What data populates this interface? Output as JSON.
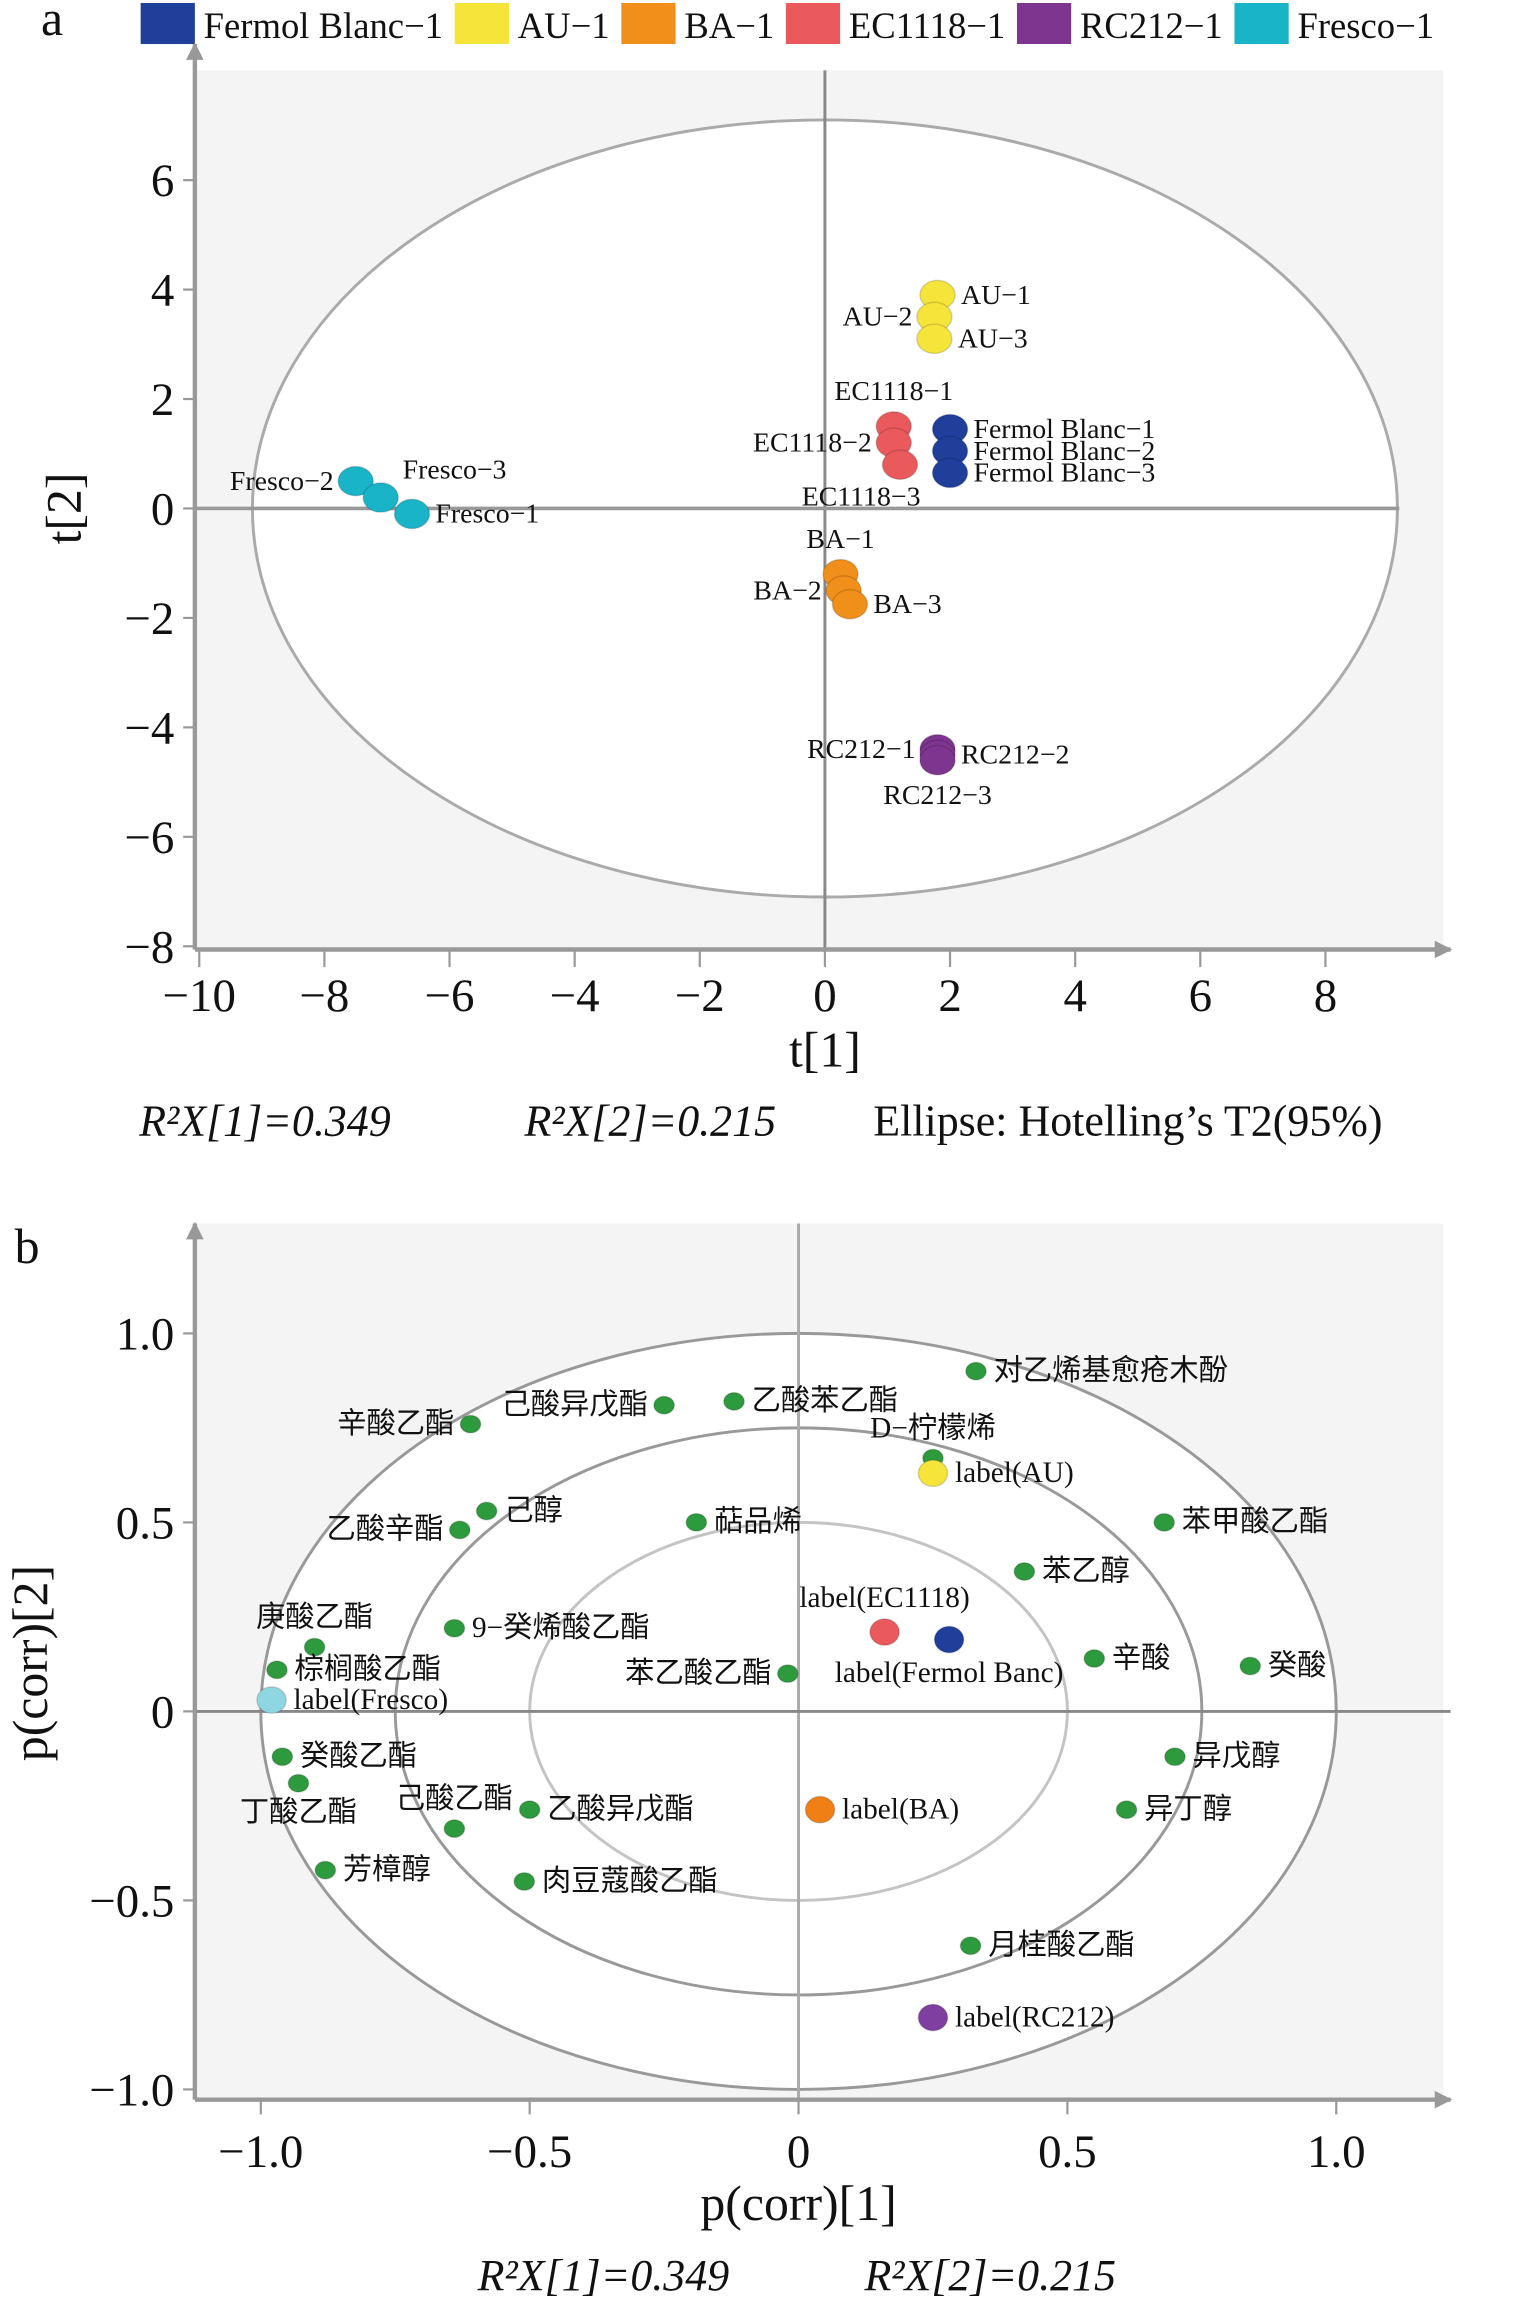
{
  "chart_data": [
    {
      "type": "scatter",
      "panel_label": "a",
      "title": "",
      "xlabel": "t[1]",
      "ylabel": "t[2]",
      "xlim": [
        -10,
        9.5
      ],
      "ylim": [
        -8,
        7.5
      ],
      "xticks": [
        -10,
        -8,
        -6,
        -4,
        -2,
        0,
        2,
        4,
        6,
        8
      ],
      "yticks": [
        6,
        4,
        2,
        0,
        -2,
        -4,
        -6,
        -8
      ],
      "xtick_labels": [
        "−10",
        "−8",
        "−6",
        "−4",
        "−2",
        "0",
        "2",
        "4",
        "6",
        "8"
      ],
      "ytick_labels": [
        "6",
        "4",
        "2",
        "0",
        "−2",
        "−4",
        "−6",
        "−8"
      ],
      "grid": false,
      "legend_placement": "top",
      "legend": [
        {
          "label": "Fermol Blanc−1",
          "color": "#1f3f9a"
        },
        {
          "label": "AU−1",
          "color": "#f5e43a"
        },
        {
          "label": "BA−1",
          "color": "#f0901a"
        },
        {
          "label": "EC1118−1",
          "color": "#ea5a5c"
        },
        {
          "label": "RC212−1",
          "color": "#7e3590"
        },
        {
          "label": "Fresco−1",
          "color": "#1ab4c9"
        }
      ],
      "ellipse": {
        "center": [
          0,
          0
        ],
        "semi_axes": [
          9.15,
          7.1
        ],
        "label": "Ellipse: Hotelling’s T2(95%)"
      },
      "footer": [
        "R²X[1]=0.349",
        "R²X[2]=0.215",
        "Ellipse: Hotelling’s T2(95%)"
      ],
      "points": [
        {
          "label": "Fresco−2",
          "x": -7.5,
          "y": 0.5,
          "group": 5,
          "label_pos": "left"
        },
        {
          "label": "Fresco−3",
          "x": -7.1,
          "y": 0.2,
          "group": 5,
          "label_pos": "above-right"
        },
        {
          "label": "Fresco−1",
          "x": -6.6,
          "y": -0.1,
          "group": 5,
          "label_pos": "right"
        },
        {
          "label": "AU−1",
          "x": 1.8,
          "y": 3.9,
          "group": 1,
          "label_pos": "right"
        },
        {
          "label": "AU−2",
          "x": 1.75,
          "y": 3.5,
          "group": 1,
          "label_pos": "left"
        },
        {
          "label": "AU−3",
          "x": 1.75,
          "y": 3.1,
          "group": 1,
          "label_pos": "right"
        },
        {
          "label": "EC1118−1",
          "x": 1.1,
          "y": 1.5,
          "group": 3,
          "label_pos": "above"
        },
        {
          "label": "EC1118−2",
          "x": 1.1,
          "y": 1.2,
          "group": 3,
          "label_pos": "left"
        },
        {
          "label": "EC1118−3",
          "x": 1.2,
          "y": 0.8,
          "group": 3,
          "label_pos": "below-left"
        },
        {
          "label": "Fermol Blanc−1",
          "x": 2.0,
          "y": 1.45,
          "group": 0,
          "label_pos": "right"
        },
        {
          "label": "Fermol Blanc−2",
          "x": 2.0,
          "y": 1.05,
          "group": 0,
          "label_pos": "right"
        },
        {
          "label": "Fermol Blanc−3",
          "x": 2.0,
          "y": 0.65,
          "group": 0,
          "label_pos": "right"
        },
        {
          "label": "BA−1",
          "x": 0.25,
          "y": -1.2,
          "group": 2,
          "label_pos": "above"
        },
        {
          "label": "BA−2",
          "x": 0.3,
          "y": -1.5,
          "group": 2,
          "label_pos": "left"
        },
        {
          "label": "BA−3",
          "x": 0.4,
          "y": -1.75,
          "group": 2,
          "label_pos": "right"
        },
        {
          "label": "RC212−1",
          "x": 1.8,
          "y": -4.4,
          "group": 4,
          "label_pos": "left"
        },
        {
          "label": "RC212−2",
          "x": 1.8,
          "y": -4.5,
          "group": 4,
          "label_pos": "right"
        },
        {
          "label": "RC212−3",
          "x": 1.8,
          "y": -4.6,
          "group": 4,
          "label_pos": "below"
        }
      ]
    },
    {
      "type": "scatter",
      "panel_label": "b",
      "title": "",
      "xlabel": "p(corr)[1]",
      "ylabel": "p(corr)[2]",
      "xlim": [
        -1.1,
        1.2
      ],
      "ylim": [
        -1.05,
        1.25
      ],
      "xticks": [
        -1.0,
        -0.5,
        0,
        0.5,
        1.0
      ],
      "yticks": [
        1.0,
        0.5,
        0,
        -0.5,
        -1.0
      ],
      "xtick_labels": [
        "−1.0",
        "−0.5",
        "0",
        "0.5",
        "1.0"
      ],
      "ytick_labels": [
        "1.0",
        "0.5",
        "0",
        "−0.5",
        "−1.0"
      ],
      "grid": false,
      "circles": [
        1.0,
        0.75,
        0.5
      ],
      "footer": [
        "R²X[1]=0.349",
        "R²X[2]=0.215"
      ],
      "variable_color": "#2e9a3e",
      "points": [
        {
          "label": "对乙烯基愈疮木酚",
          "x": 0.33,
          "y": 0.9,
          "label_pos": "right"
        },
        {
          "label": "乙酸苯乙酯",
          "x": -0.12,
          "y": 0.82,
          "label_pos": "right"
        },
        {
          "label": "己酸异戊酯",
          "x": -0.25,
          "y": 0.81,
          "label_pos": "left"
        },
        {
          "label": "辛酸乙酯",
          "x": -0.61,
          "y": 0.76,
          "label_pos": "left"
        },
        {
          "label": "D−柠檬烯",
          "x": 0.25,
          "y": 0.67,
          "label_pos": "above"
        },
        {
          "label": "label(AU)",
          "x": 0.25,
          "y": 0.63,
          "label_pos": "right",
          "color": "#f5e43a",
          "big": true
        },
        {
          "label": "己醇",
          "x": -0.58,
          "y": 0.53,
          "label_pos": "right"
        },
        {
          "label": "乙酸辛酯",
          "x": -0.63,
          "y": 0.48,
          "label_pos": "left"
        },
        {
          "label": "萜品烯",
          "x": -0.19,
          "y": 0.5,
          "label_pos": "right"
        },
        {
          "label": "苯甲酸乙酯",
          "x": 0.68,
          "y": 0.5,
          "label_pos": "right"
        },
        {
          "label": "苯乙醇",
          "x": 0.42,
          "y": 0.37,
          "label_pos": "right"
        },
        {
          "label": "庚酸乙酯",
          "x": -0.9,
          "y": 0.17,
          "label_pos": "above"
        },
        {
          "label": "9−癸烯酸乙酯",
          "x": -0.64,
          "y": 0.22,
          "label_pos": "right"
        },
        {
          "label": "label(EC1118)",
          "x": 0.16,
          "y": 0.21,
          "label_pos": "above",
          "color": "#ea5a5c",
          "big": true
        },
        {
          "label": "label(Fermol Banc)",
          "x": 0.28,
          "y": 0.19,
          "label_pos": "below",
          "color": "#1f3f9a",
          "big": true
        },
        {
          "label": "辛酸",
          "x": 0.55,
          "y": 0.14,
          "label_pos": "right"
        },
        {
          "label": "癸酸",
          "x": 0.84,
          "y": 0.12,
          "label_pos": "right"
        },
        {
          "label": "棕榈酸乙酯",
          "x": -0.97,
          "y": 0.11,
          "label_pos": "right"
        },
        {
          "label": "苯乙酸乙酯",
          "x": -0.02,
          "y": 0.1,
          "label_pos": "left"
        },
        {
          "label": "label(Fresco)",
          "x": -0.98,
          "y": 0.03,
          "label_pos": "right",
          "color": "#8fd6e3",
          "big": true
        },
        {
          "label": "癸酸乙酯",
          "x": -0.96,
          "y": -0.12,
          "label_pos": "right"
        },
        {
          "label": "异戊醇",
          "x": 0.7,
          "y": -0.12,
          "label_pos": "right"
        },
        {
          "label": "丁酸乙酯",
          "x": -0.93,
          "y": -0.19,
          "label_pos": "below"
        },
        {
          "label": "己酸乙酯",
          "x": -0.64,
          "y": -0.31,
          "label_pos": "above"
        },
        {
          "label": "乙酸异戊酯",
          "x": -0.5,
          "y": -0.26,
          "label_pos": "right"
        },
        {
          "label": "label(BA)",
          "x": 0.04,
          "y": -0.26,
          "label_pos": "right",
          "color": "#f07f16",
          "big": true
        },
        {
          "label": "异丁醇",
          "x": 0.61,
          "y": -0.26,
          "label_pos": "right"
        },
        {
          "label": "芳樟醇",
          "x": -0.88,
          "y": -0.42,
          "label_pos": "right"
        },
        {
          "label": "肉豆蔻酸乙酯",
          "x": -0.51,
          "y": -0.45,
          "label_pos": "right"
        },
        {
          "label": "月桂酸乙酯",
          "x": 0.32,
          "y": -0.62,
          "label_pos": "right"
        },
        {
          "label": "label(RC212)",
          "x": 0.25,
          "y": -0.81,
          "label_pos": "right",
          "color": "#7e3fa0",
          "big": true
        }
      ]
    }
  ]
}
